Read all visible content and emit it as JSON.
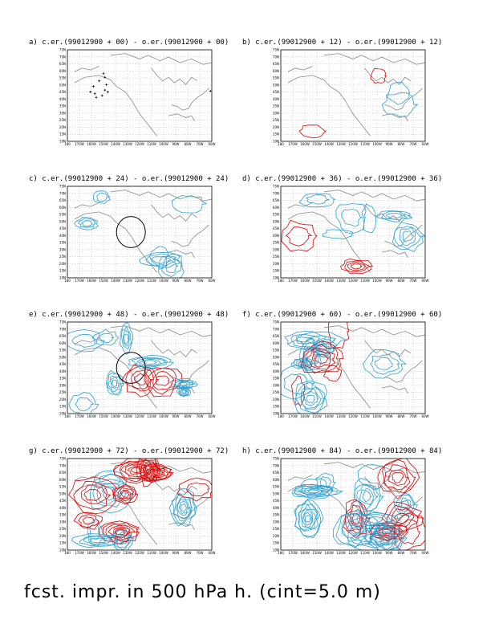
{
  "caption": "fcst. impr. in 500 hPa h. (cint=5.0 m)",
  "colors": {
    "positive": "#e00000",
    "negative": "#2aa0d0",
    "coast": "#888888",
    "grid": "#999999",
    "marker": "#000000"
  },
  "chart_data": {
    "type": "contour-map",
    "lat_ticks": [
      "75N",
      "70N",
      "65N",
      "60N",
      "55N",
      "50N",
      "45N",
      "40N",
      "35N",
      "30N",
      "25N",
      "20N",
      "15N",
      "10N"
    ],
    "lon_ticks": [
      "180",
      "170W",
      "160W",
      "150W",
      "140W",
      "130W",
      "120W",
      "110W",
      "100W",
      "90W",
      "80W",
      "70W",
      "60W"
    ],
    "panels": [
      {
        "id": "a",
        "title": "a) c.er.(99012900 + 00) - o.er.(99012900 + 00)",
        "lead_hours": 0,
        "markers": true
      },
      {
        "id": "b",
        "title": "b) c.er.(99012900 + 12) - o.er.(99012900 + 12)",
        "lead_hours": 12
      },
      {
        "id": "c",
        "title": "c) c.er.(99012900 + 24) - o.er.(99012900 + 24)",
        "lead_hours": 24,
        "circle": true
      },
      {
        "id": "d",
        "title": "d) c.er.(99012900 + 36) - o.er.(99012900 + 36)",
        "lead_hours": 36
      },
      {
        "id": "e",
        "title": "e) c.er.(99012900 + 48) - o.er.(99012900 + 48)",
        "lead_hours": 48,
        "circle": true
      },
      {
        "id": "f",
        "title": "f) c.er.(99012900 + 60) - o.er.(99012900 + 60)",
        "lead_hours": 60
      },
      {
        "id": "g",
        "title": "g) c.er.(99012900 + 72) - o.er.(99012900 + 72)",
        "lead_hours": 72
      },
      {
        "id": "h",
        "title": "h) c.er.(99012900 + 84) - o.er.(99012900 + 84)",
        "lead_hours": 84
      }
    ]
  }
}
